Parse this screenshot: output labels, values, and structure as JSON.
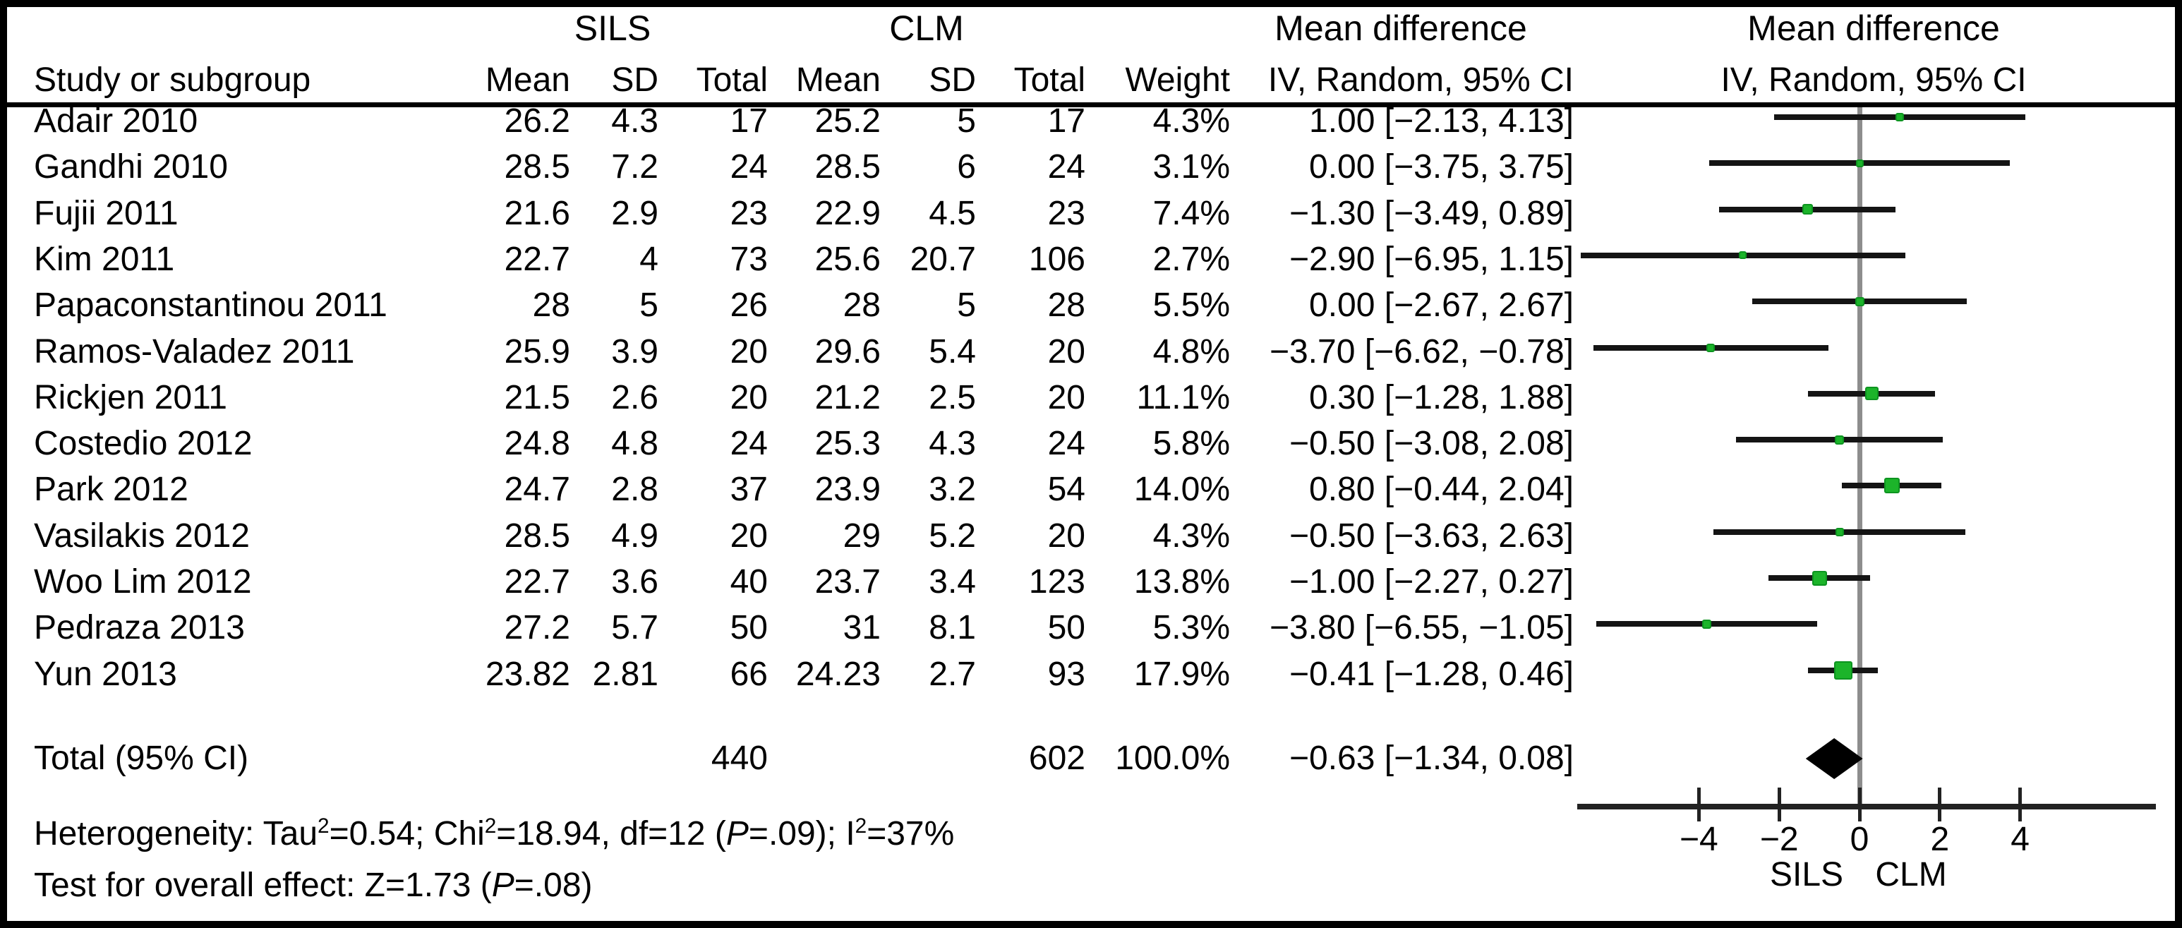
{
  "figure": {
    "header": {
      "groups": [
        {
          "label": "SILS"
        },
        {
          "label": "CLM"
        },
        {
          "label": "Mean difference"
        },
        {
          "label": "Mean difference"
        }
      ],
      "study_col": "Study or subgroup",
      "mean_col": "Mean",
      "sd_col": "SD",
      "total_col": "Total",
      "weight_col": "Weight",
      "ci_col": "IV, Random, 95% CI",
      "plot_ci_col": "IV, Random, 95% CI"
    },
    "studies": [
      {
        "name": "Adair 2010",
        "sils_mean": "26.2",
        "sils_sd": "4.3",
        "sils_total": "17",
        "clm_mean": "25.2",
        "clm_sd": "5",
        "clm_total": "17",
        "weight": "4.3%",
        "ci_text": "1.00 [−2.13, 4.13]"
      },
      {
        "name": "Gandhi 2010",
        "sils_mean": "28.5",
        "sils_sd": "7.2",
        "sils_total": "24",
        "clm_mean": "28.5",
        "clm_sd": "6",
        "clm_total": "24",
        "weight": "3.1%",
        "ci_text": "0.00 [−3.75, 3.75]"
      },
      {
        "name": "Fujii 2011",
        "sils_mean": "21.6",
        "sils_sd": "2.9",
        "sils_total": "23",
        "clm_mean": "22.9",
        "clm_sd": "4.5",
        "clm_total": "23",
        "weight": "7.4%",
        "ci_text": "−1.30 [−3.49, 0.89]"
      },
      {
        "name": "Kim 2011",
        "sils_mean": "22.7",
        "sils_sd": "4",
        "sils_total": "73",
        "clm_mean": "25.6",
        "clm_sd": "20.7",
        "clm_total": "106",
        "weight": "2.7%",
        "ci_text": "−2.90 [−6.95, 1.15]"
      },
      {
        "name": "Papaconstantinou 2011",
        "sils_mean": "28",
        "sils_sd": "5",
        "sils_total": "26",
        "clm_mean": "28",
        "clm_sd": "5",
        "clm_total": "28",
        "weight": "5.5%",
        "ci_text": "0.00 [−2.67, 2.67]"
      },
      {
        "name": "Ramos-Valadez 2011",
        "sils_mean": "25.9",
        "sils_sd": "3.9",
        "sils_total": "20",
        "clm_mean": "29.6",
        "clm_sd": "5.4",
        "clm_total": "20",
        "weight": "4.8%",
        "ci_text": "−3.70 [−6.62, −0.78]"
      },
      {
        "name": "Rickjen 2011",
        "sils_mean": "21.5",
        "sils_sd": "2.6",
        "sils_total": "20",
        "clm_mean": "21.2",
        "clm_sd": "2.5",
        "clm_total": "20",
        "weight": "11.1%",
        "ci_text": "0.30 [−1.28, 1.88]"
      },
      {
        "name": "Costedio 2012",
        "sils_mean": "24.8",
        "sils_sd": "4.8",
        "sils_total": "24",
        "clm_mean": "25.3",
        "clm_sd": "4.3",
        "clm_total": "24",
        "weight": "5.8%",
        "ci_text": "−0.50 [−3.08, 2.08]"
      },
      {
        "name": "Park 2012",
        "sils_mean": "24.7",
        "sils_sd": "2.8",
        "sils_total": "37",
        "clm_mean": "23.9",
        "clm_sd": "3.2",
        "clm_total": "54",
        "weight": "14.0%",
        "ci_text": "0.80 [−0.44, 2.04]"
      },
      {
        "name": "Vasilakis 2012",
        "sils_mean": "28.5",
        "sils_sd": "4.9",
        "sils_total": "20",
        "clm_mean": "29",
        "clm_sd": "5.2",
        "clm_total": "20",
        "weight": "4.3%",
        "ci_text": "−0.50 [−3.63, 2.63]"
      },
      {
        "name": "Woo Lim 2012",
        "sils_mean": "22.7",
        "sils_sd": "3.6",
        "sils_total": "40",
        "clm_mean": "23.7",
        "clm_sd": "3.4",
        "clm_total": "123",
        "weight": "13.8%",
        "ci_text": "−1.00 [−2.27, 0.27]"
      },
      {
        "name": "Pedraza 2013",
        "sils_mean": "27.2",
        "sils_sd": "5.7",
        "sils_total": "50",
        "clm_mean": "31",
        "clm_sd": "8.1",
        "clm_total": "50",
        "weight": "5.3%",
        "ci_text": "−3.80 [−6.55, −1.05]"
      },
      {
        "name": "Yun 2013",
        "sils_mean": "23.82",
        "sils_sd": "2.81",
        "sils_total": "66",
        "clm_mean": "24.23",
        "clm_sd": "2.7",
        "clm_total": "93",
        "weight": "17.9%",
        "ci_text": "−0.41 [−1.28, 0.46]"
      }
    ],
    "total_row": {
      "label": "Total (95% CI)",
      "sils_total": "440",
      "clm_total": "602",
      "weight": "100.0%",
      "ci_text": "−0.63 [−1.34, 0.08]"
    },
    "footnotes": {
      "heterogeneity": [
        {
          "t": "Heterogeneity: Tau"
        },
        {
          "t": "2",
          "s": "sup"
        },
        {
          "t": "=0.54; Chi"
        },
        {
          "t": "2",
          "s": "sup"
        },
        {
          "t": "=18.94, df=12 ("
        },
        {
          "t": "P",
          "s": "i"
        },
        {
          "t": "=.09); I"
        },
        {
          "t": "2",
          "s": "sup"
        },
        {
          "t": "=37%"
        }
      ],
      "overall_effect": [
        {
          "t": "Test for overall effect: Z=1.73 ("
        },
        {
          "t": "P",
          "s": "i"
        },
        {
          "t": "=.08)"
        }
      ]
    },
    "colors": {
      "marker_fill": "#1cb42a",
      "marker_border": "#0d9420",
      "ci_line": "#141414",
      "zero_line": "#8d8d8d",
      "axis_line": "#222222",
      "diamond": "#000000",
      "text": "#000000",
      "background": "#ffffff"
    }
  },
  "chart_data": {
    "type": "scatter",
    "subtype": "forest_plot",
    "title": "Mean difference IV, Random, 95% CI",
    "xlabel_left": "SILS",
    "xlabel_right": "CLM",
    "xlim": [
      -7.2,
      7.3
    ],
    "xticks": [
      -4,
      -2,
      0,
      2,
      4
    ],
    "xtick_labels": [
      "−4",
      "−2",
      "0",
      "2",
      "4"
    ],
    "grid": false,
    "legend": false,
    "points": [
      {
        "study": "Adair 2010",
        "md": 1.0,
        "ci_low": -2.13,
        "ci_high": 4.13,
        "weight_pct": 4.3
      },
      {
        "study": "Gandhi 2010",
        "md": 0.0,
        "ci_low": -3.75,
        "ci_high": 3.75,
        "weight_pct": 3.1
      },
      {
        "study": "Fujii 2011",
        "md": -1.3,
        "ci_low": -3.49,
        "ci_high": 0.89,
        "weight_pct": 7.4
      },
      {
        "study": "Kim 2011",
        "md": -2.9,
        "ci_low": -6.95,
        "ci_high": 1.15,
        "weight_pct": 2.7
      },
      {
        "study": "Papaconstantinou 2011",
        "md": 0.0,
        "ci_low": -2.67,
        "ci_high": 2.67,
        "weight_pct": 5.5
      },
      {
        "study": "Ramos-Valadez 2011",
        "md": -3.7,
        "ci_low": -6.62,
        "ci_high": -0.78,
        "weight_pct": 4.8
      },
      {
        "study": "Rickjen 2011",
        "md": 0.3,
        "ci_low": -1.28,
        "ci_high": 1.88,
        "weight_pct": 11.1
      },
      {
        "study": "Costedio 2012",
        "md": -0.5,
        "ci_low": -3.08,
        "ci_high": 2.08,
        "weight_pct": 5.8
      },
      {
        "study": "Park 2012",
        "md": 0.8,
        "ci_low": -0.44,
        "ci_high": 2.04,
        "weight_pct": 14.0
      },
      {
        "study": "Vasilakis 2012",
        "md": -0.5,
        "ci_low": -3.63,
        "ci_high": 2.63,
        "weight_pct": 4.3
      },
      {
        "study": "Woo Lim 2012",
        "md": -1.0,
        "ci_low": -2.27,
        "ci_high": 0.27,
        "weight_pct": 13.8
      },
      {
        "study": "Pedraza 2013",
        "md": -3.8,
        "ci_low": -6.55,
        "ci_high": -1.05,
        "weight_pct": 5.3
      },
      {
        "study": "Yun 2013",
        "md": -0.41,
        "ci_low": -1.28,
        "ci_high": 0.46,
        "weight_pct": 17.9
      }
    ],
    "pooled": {
      "label": "Total (95% CI)",
      "md": -0.63,
      "ci_low": -1.34,
      "ci_high": 0.08,
      "weight_pct": 100.0
    }
  }
}
